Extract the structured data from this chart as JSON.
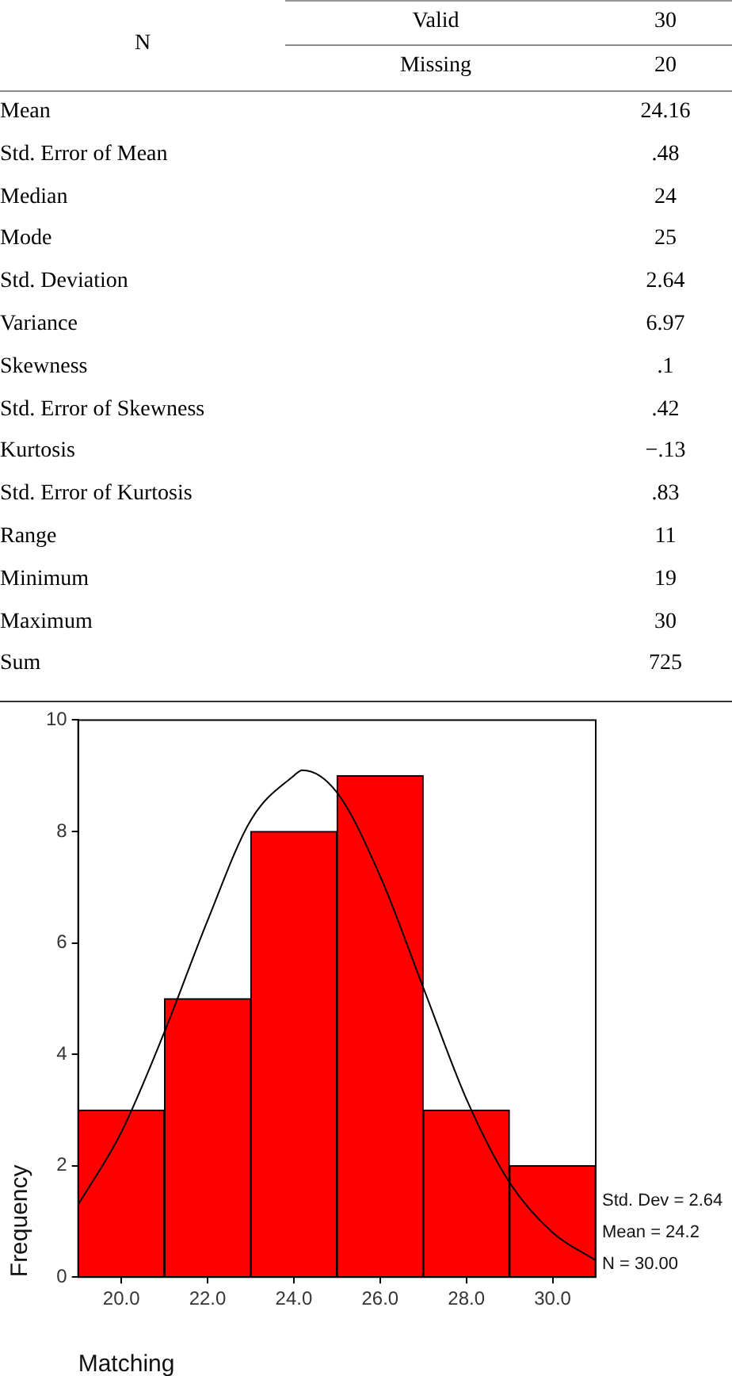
{
  "chart_data": [
    {
      "type": "other",
      "annotations": [
        "N",
        "Valid",
        "30",
        "Missing",
        "20",
        "Mean",
        "24.16",
        "Std. Error of Mean",
        ".48",
        "Median",
        "24",
        "Mode",
        "25",
        "Std. Deviation",
        "2.64",
        "Variance",
        "6.97",
        "Skewness",
        ".1",
        "Std. Error of Skewness",
        ".42",
        "Kurtosis",
        "−.13",
        "Std. Error of Kurtosis",
        ".83",
        "Range",
        "11",
        "Minimum",
        "19",
        "Maximum",
        "30",
        "Sum",
        "725"
      ]
    },
    {
      "type": "histogram",
      "xlabel": "Matching",
      "ylabel": "Frequency",
      "bins": [
        19,
        21,
        23,
        25,
        27,
        29,
        31
      ],
      "series": [
        {
          "type": "histogram",
          "color": "#ff0000",
          "values": [
            3,
            5,
            8,
            9,
            3,
            2
          ]
        },
        {
          "type": "line",
          "color": "#000000",
          "x": [
            19,
            20,
            21,
            22,
            23,
            24,
            24.2,
            25,
            26,
            27,
            28,
            29,
            30,
            31
          ],
          "values": [
            1.3,
            2.6,
            4.4,
            6.4,
            8.2,
            9.0,
            9.1,
            8.7,
            7.2,
            5.2,
            3.2,
            1.7,
            0.8,
            0.3
          ]
        }
      ],
      "xlim": [
        19,
        31
      ],
      "ylim": [
        0,
        10
      ],
      "xticks": [
        {
          "value": 20,
          "label": "20.0"
        },
        {
          "value": 22,
          "label": "22.0"
        },
        {
          "value": 24,
          "label": "24.0"
        },
        {
          "value": 26,
          "label": "26.0"
        },
        {
          "value": 28,
          "label": "28.0"
        },
        {
          "value": 30,
          "label": "30.0"
        }
      ],
      "yticks": [
        0,
        2,
        4,
        6,
        8,
        10
      ],
      "annotations": [
        "Std. Dev = 2.64",
        "Mean = 24.2",
        "N = 30.00"
      ]
    }
  ]
}
